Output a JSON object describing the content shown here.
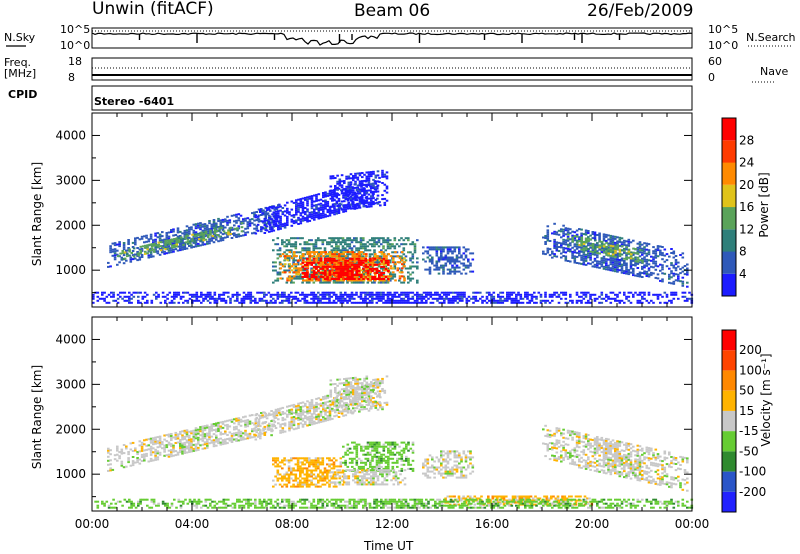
{
  "header": {
    "station": "Unwin (fitACF)",
    "beam": "Beam 06",
    "date": "26/Feb/2009"
  },
  "strips": {
    "nsky_label": "N.Sky",
    "nsky_ticks": [
      "10^5",
      "10^0"
    ],
    "nsearch_label": "N.Search",
    "nsearch_ticks": [
      "10^5",
      "10^0"
    ],
    "freq_label": "Freq.",
    "freq_unit": "[MHz]",
    "freq_ticks": [
      "18",
      "8"
    ],
    "nave_label": "Nave",
    "nave_ticks": [
      "60",
      "0"
    ],
    "cpid_label": "CPID",
    "cpid_value": "Stereo  -6401"
  },
  "x_axis": {
    "label": "Time UT",
    "ticks": [
      "00:00",
      "04:00",
      "08:00",
      "12:00",
      "16:00",
      "20:00",
      "00:00"
    ]
  },
  "colors": {
    "power": [
      "#1c1cff",
      "#2f59b9",
      "#2f7f7a",
      "#5aa35a",
      "#e0c31a",
      "#ff8a00",
      "#ff3b00",
      "#ff0000"
    ],
    "velocity": [
      "#2222ff",
      "#2a55c8",
      "#2f8a2f",
      "#66cc33",
      "#c8c8c8",
      "#ffb300",
      "#ff8800",
      "#ff4400",
      "#ff0000"
    ]
  },
  "chart_data": [
    {
      "type": "heatmap",
      "panel": "power",
      "ylabel": "Slant Range [km]",
      "xlabel": "",
      "ylim": [
        180,
        4500
      ],
      "xlim": [
        0,
        24
      ],
      "yticks": [
        "1000",
        "2000",
        "3000",
        "4000"
      ],
      "colorbar_label": "Power [dB]",
      "colorbar_ticks": [
        "4",
        "8",
        "12",
        "16",
        "20",
        "24",
        "28"
      ],
      "regions": [
        {
          "t0": 0.6,
          "t1": 7.5,
          "r0": 1050,
          "r1": 1550,
          "level": 1,
          "slope": 130
        },
        {
          "t0": 1.0,
          "t1": 6.0,
          "r0": 1200,
          "r1": 1400,
          "level": 3,
          "slope": 130
        },
        {
          "t0": 6.5,
          "t1": 11.5,
          "r0": 1750,
          "r1": 2300,
          "level": 0,
          "slope": 150
        },
        {
          "t0": 9.5,
          "t1": 11.8,
          "r0": 2300,
          "r1": 3100,
          "level": 0,
          "slope": 60
        },
        {
          "t0": 7.2,
          "t1": 13.0,
          "r0": 700,
          "r1": 1700,
          "level": 2,
          "slope": 0
        },
        {
          "t0": 7.5,
          "t1": 12.5,
          "r0": 750,
          "r1": 1400,
          "level": 5,
          "slope": 0
        },
        {
          "t0": 8.2,
          "t1": 11.8,
          "r0": 780,
          "r1": 1250,
          "level": 7,
          "slope": 0
        },
        {
          "t0": 13.2,
          "t1": 15.2,
          "r0": 900,
          "r1": 1500,
          "level": 1,
          "slope": 0
        },
        {
          "t0": 18.0,
          "t1": 23.8,
          "r0": 1300,
          "r1": 2100,
          "level": 1,
          "slope": -120
        },
        {
          "t0": 19.0,
          "t1": 22.0,
          "r0": 1500,
          "r1": 1800,
          "level": 3,
          "slope": -120
        },
        {
          "t0": 0.0,
          "t1": 24.0,
          "r0": 250,
          "r1": 500,
          "level": 0,
          "slope": 0
        }
      ]
    },
    {
      "type": "heatmap",
      "panel": "velocity",
      "ylabel": "Slant Range [km]",
      "xlabel": "Time UT",
      "ylim": [
        180,
        4500
      ],
      "xlim": [
        0,
        24
      ],
      "yticks": [
        "1000",
        "2000",
        "3000",
        "4000"
      ],
      "colorbar_label": "Velocity [m s⁻¹]",
      "colorbar_ticks": [
        "200",
        "100",
        "50",
        "15",
        "-15",
        "-50",
        "-100",
        "-200"
      ],
      "regions": [
        {
          "t0": 0.6,
          "t1": 7.5,
          "r0": 1050,
          "r1": 1550,
          "level": 4,
          "slope": 130
        },
        {
          "t0": 6.5,
          "t1": 11.5,
          "r0": 1750,
          "r1": 2300,
          "level": 4,
          "slope": 150
        },
        {
          "t0": 9.5,
          "t1": 11.8,
          "r0": 2300,
          "r1": 3100,
          "level": 4,
          "slope": 60
        },
        {
          "t0": 7.2,
          "t1": 10.0,
          "r0": 700,
          "r1": 1350,
          "level": 5,
          "slope": 0
        },
        {
          "t0": 10.0,
          "t1": 12.8,
          "r0": 1050,
          "r1": 1700,
          "level": 3,
          "slope": 0
        },
        {
          "t0": 9.5,
          "t1": 12.5,
          "r0": 750,
          "r1": 1100,
          "level": 4,
          "slope": 0
        },
        {
          "t0": 13.2,
          "t1": 15.2,
          "r0": 900,
          "r1": 1500,
          "level": 4,
          "slope": 0
        },
        {
          "t0": 18.0,
          "t1": 23.8,
          "r0": 1300,
          "r1": 2100,
          "level": 4,
          "slope": -120
        },
        {
          "t0": 14.0,
          "t1": 20.0,
          "r0": 300,
          "r1": 500,
          "level": 5,
          "slope": 0
        },
        {
          "t0": 0.0,
          "t1": 24.0,
          "r0": 230,
          "r1": 420,
          "level": 3,
          "slope": 0
        }
      ]
    }
  ]
}
